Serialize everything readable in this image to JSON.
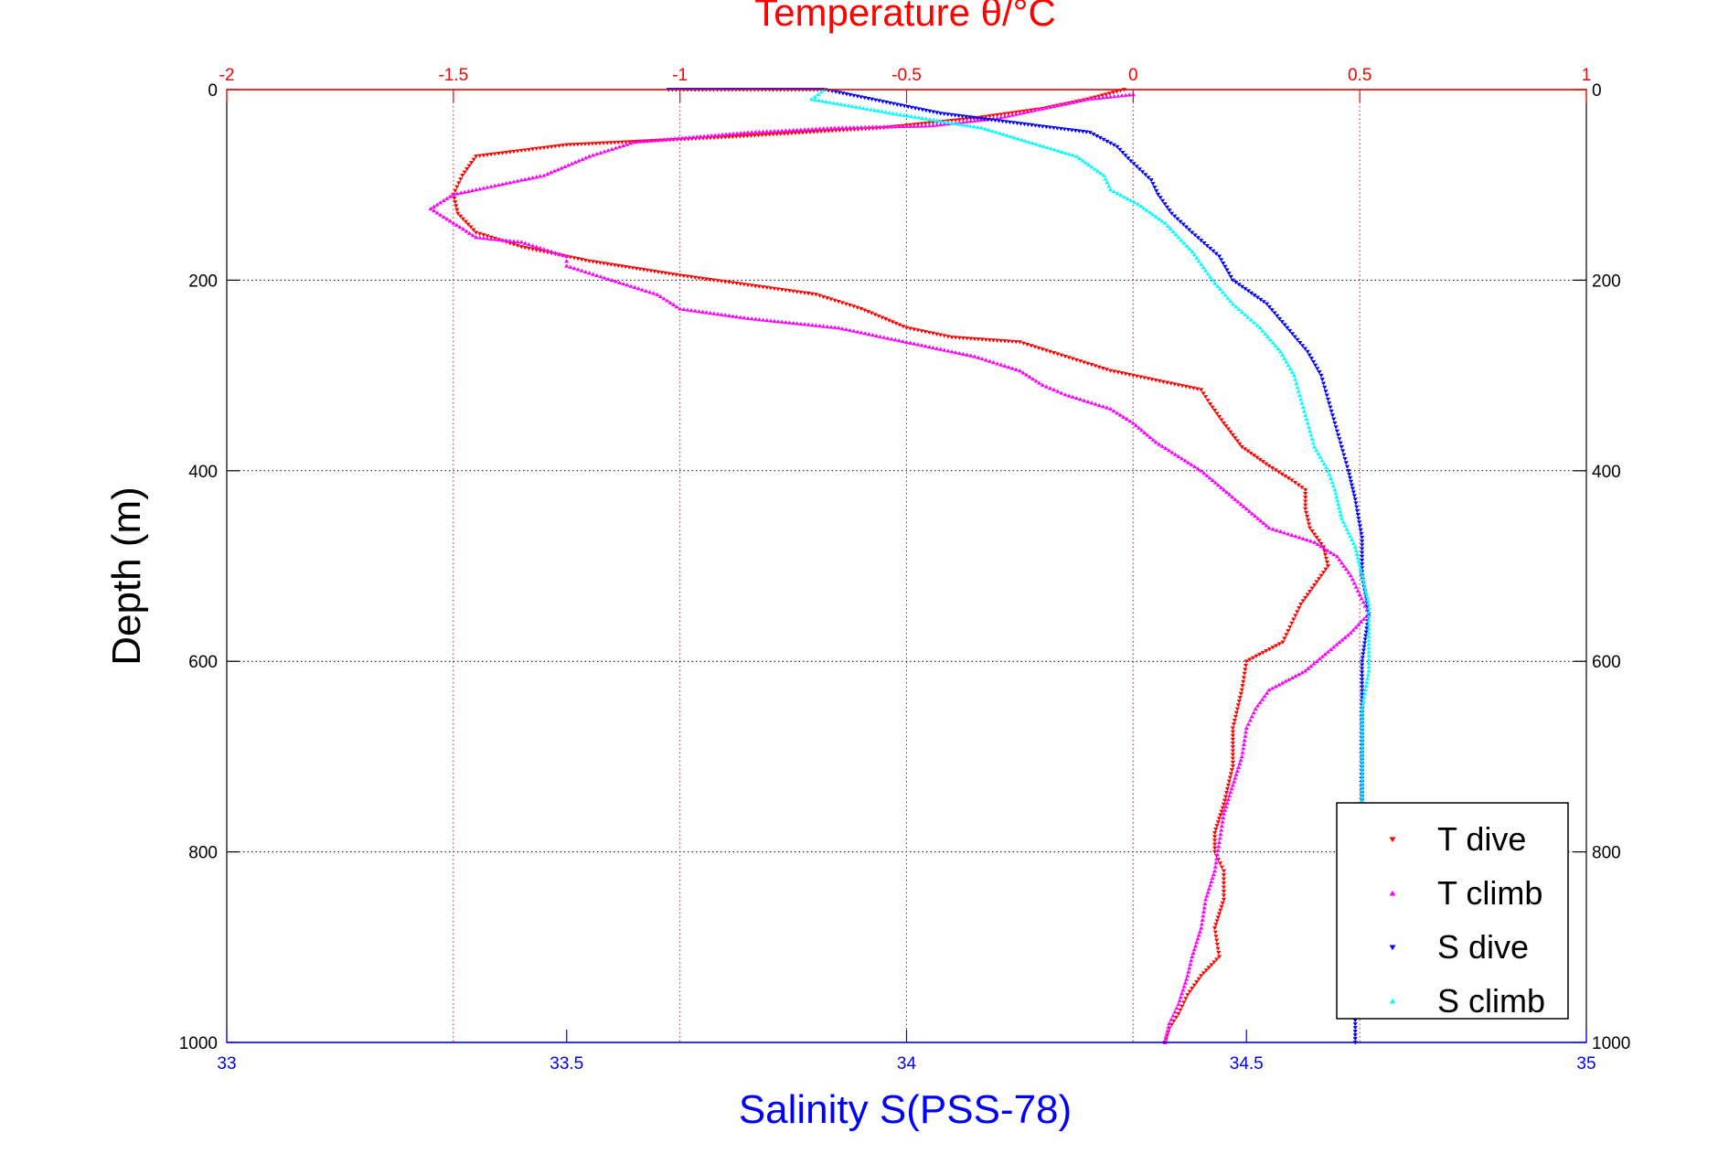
{
  "chart_data": {
    "type": "scatter",
    "title": "Temperature θ/°C",
    "ylabel": "Depth (m)",
    "xlabel": "Salinity S(PSS-78)",
    "y_axis": {
      "range": [
        0,
        1000
      ],
      "reversed": true,
      "ticks": [
        0,
        200,
        400,
        600,
        800,
        1000
      ],
      "tick_labels": [
        "0",
        "200",
        "400",
        "600",
        "800",
        "1000"
      ]
    },
    "x_top_axis": {
      "label": "Temperature θ/°C",
      "range": [
        -2,
        1
      ],
      "ticks": [
        -2,
        -1.5,
        -1,
        -0.5,
        0,
        0.5,
        1
      ],
      "tick_labels": [
        "-2",
        "-1.5",
        "-1",
        "-0.5",
        "0",
        "0.5",
        "1"
      ],
      "color": "#ff0000"
    },
    "x_bottom_axis": {
      "label": "Salinity S(PSS-78)",
      "range": [
        33,
        35
      ],
      "ticks": [
        33,
        33.5,
        34,
        34.5,
        35
      ],
      "tick_labels": [
        "33",
        "33.5",
        "34",
        "34.5",
        "35"
      ],
      "color": "#0000ff"
    },
    "grid": true,
    "legend": {
      "placement": "bottom-right"
    },
    "series": [
      {
        "name": "T dive",
        "axis": "top",
        "color": "#ff0000",
        "marker": "triangle-down",
        "points": [
          [
            -0.02,
            0
          ],
          [
            -0.1,
            10
          ],
          [
            -0.2,
            20
          ],
          [
            -0.35,
            30
          ],
          [
            -0.55,
            40
          ],
          [
            -0.9,
            50
          ],
          [
            -1.25,
            58
          ],
          [
            -1.45,
            70
          ],
          [
            -1.48,
            90
          ],
          [
            -1.5,
            110
          ],
          [
            -1.49,
            130
          ],
          [
            -1.45,
            150
          ],
          [
            -1.35,
            165
          ],
          [
            -1.2,
            180
          ],
          [
            -1.0,
            195
          ],
          [
            -0.85,
            205
          ],
          [
            -0.7,
            215
          ],
          [
            -0.6,
            230
          ],
          [
            -0.5,
            250
          ],
          [
            -0.4,
            260
          ],
          [
            -0.25,
            265
          ],
          [
            -0.15,
            280
          ],
          [
            -0.05,
            295
          ],
          [
            0.05,
            305
          ],
          [
            0.15,
            315
          ],
          [
            0.17,
            330
          ],
          [
            0.2,
            350
          ],
          [
            0.24,
            375
          ],
          [
            0.3,
            395
          ],
          [
            0.35,
            410
          ],
          [
            0.38,
            420
          ],
          [
            0.38,
            440
          ],
          [
            0.39,
            460
          ],
          [
            0.42,
            480
          ],
          [
            0.43,
            500
          ],
          [
            0.4,
            520
          ],
          [
            0.37,
            540
          ],
          [
            0.35,
            560
          ],
          [
            0.33,
            580
          ],
          [
            0.25,
            600
          ],
          [
            0.24,
            630
          ],
          [
            0.23,
            650
          ],
          [
            0.22,
            670
          ],
          [
            0.22,
            690
          ],
          [
            0.22,
            710
          ],
          [
            0.21,
            730
          ],
          [
            0.2,
            750
          ],
          [
            0.18,
            780
          ],
          [
            0.18,
            800
          ],
          [
            0.2,
            820
          ],
          [
            0.2,
            850
          ],
          [
            0.18,
            880
          ],
          [
            0.19,
            910
          ],
          [
            0.15,
            930
          ],
          [
            0.12,
            950
          ],
          [
            0.1,
            970
          ],
          [
            0.08,
            985
          ],
          [
            0.07,
            1000
          ]
        ]
      },
      {
        "name": "T climb",
        "axis": "top",
        "color": "#ff00ff",
        "marker": "triangle-up",
        "points": [
          [
            0.0,
            5
          ],
          [
            -0.1,
            10
          ],
          [
            -0.2,
            20
          ],
          [
            -0.3,
            30
          ],
          [
            -0.45,
            38
          ],
          [
            -0.65,
            40
          ],
          [
            -0.85,
            45
          ],
          [
            -1.1,
            55
          ],
          [
            -1.2,
            70
          ],
          [
            -1.3,
            90
          ],
          [
            -1.4,
            100
          ],
          [
            -1.5,
            110
          ],
          [
            -1.55,
            125
          ],
          [
            -1.5,
            140
          ],
          [
            -1.45,
            155
          ],
          [
            -1.35,
            160
          ],
          [
            -1.25,
            175
          ],
          [
            -1.25,
            185
          ],
          [
            -1.15,
            200
          ],
          [
            -1.05,
            215
          ],
          [
            -1.0,
            230
          ],
          [
            -0.85,
            240
          ],
          [
            -0.65,
            250
          ],
          [
            -0.55,
            260
          ],
          [
            -0.45,
            270
          ],
          [
            -0.35,
            280
          ],
          [
            -0.25,
            295
          ],
          [
            -0.2,
            310
          ],
          [
            -0.15,
            320
          ],
          [
            -0.05,
            335
          ],
          [
            0.0,
            350
          ],
          [
            0.05,
            370
          ],
          [
            0.1,
            385
          ],
          [
            0.15,
            400
          ],
          [
            0.2,
            420
          ],
          [
            0.25,
            440
          ],
          [
            0.3,
            460
          ],
          [
            0.4,
            475
          ],
          [
            0.45,
            490
          ],
          [
            0.48,
            510
          ],
          [
            0.5,
            530
          ],
          [
            0.52,
            550
          ],
          [
            0.48,
            570
          ],
          [
            0.43,
            590
          ],
          [
            0.38,
            610
          ],
          [
            0.3,
            630
          ],
          [
            0.27,
            650
          ],
          [
            0.25,
            670
          ],
          [
            0.24,
            700
          ],
          [
            0.22,
            730
          ],
          [
            0.2,
            760
          ],
          [
            0.19,
            790
          ],
          [
            0.18,
            820
          ],
          [
            0.16,
            850
          ],
          [
            0.15,
            880
          ],
          [
            0.13,
            910
          ],
          [
            0.12,
            930
          ],
          [
            0.1,
            960
          ],
          [
            0.08,
            980
          ],
          [
            0.07,
            1000
          ]
        ]
      },
      {
        "name": "S dive",
        "axis": "bottom",
        "color": "#0000ff",
        "marker": "triangle-down",
        "points": [
          [
            33.65,
            0
          ],
          [
            33.7,
            0
          ],
          [
            33.76,
            0
          ],
          [
            33.88,
            0
          ],
          [
            34.05,
            25
          ],
          [
            34.27,
            45
          ],
          [
            34.31,
            60
          ],
          [
            34.33,
            75
          ],
          [
            34.36,
            95
          ],
          [
            34.37,
            110
          ],
          [
            34.39,
            130
          ],
          [
            34.42,
            150
          ],
          [
            34.46,
            175
          ],
          [
            34.48,
            200
          ],
          [
            34.53,
            225
          ],
          [
            34.56,
            250
          ],
          [
            34.59,
            275
          ],
          [
            34.61,
            300
          ],
          [
            34.62,
            325
          ],
          [
            34.63,
            350
          ],
          [
            34.64,
            375
          ],
          [
            34.65,
            400
          ],
          [
            34.66,
            430
          ],
          [
            34.67,
            470
          ],
          [
            34.67,
            510
          ],
          [
            34.68,
            550
          ],
          [
            34.67,
            600
          ],
          [
            34.67,
            650
          ],
          [
            34.67,
            700
          ],
          [
            34.67,
            750
          ],
          [
            34.66,
            800
          ],
          [
            34.66,
            850
          ],
          [
            34.66,
            900
          ],
          [
            34.66,
            950
          ],
          [
            34.66,
            1000
          ]
        ]
      },
      {
        "name": "S climb",
        "axis": "bottom",
        "color": "#00ffff",
        "marker": "triangle-up",
        "points": [
          [
            33.88,
            0
          ],
          [
            33.86,
            10
          ],
          [
            33.98,
            25
          ],
          [
            34.11,
            40
          ],
          [
            34.18,
            55
          ],
          [
            34.25,
            70
          ],
          [
            34.29,
            90
          ],
          [
            34.3,
            105
          ],
          [
            34.34,
            120
          ],
          [
            34.38,
            140
          ],
          [
            34.42,
            170
          ],
          [
            34.45,
            200
          ],
          [
            34.48,
            225
          ],
          [
            34.52,
            250
          ],
          [
            34.55,
            275
          ],
          [
            34.57,
            300
          ],
          [
            34.58,
            325
          ],
          [
            34.59,
            350
          ],
          [
            34.6,
            375
          ],
          [
            34.62,
            400
          ],
          [
            34.63,
            420
          ],
          [
            34.64,
            450
          ],
          [
            34.66,
            480
          ],
          [
            34.67,
            510
          ],
          [
            34.68,
            540
          ],
          [
            34.68,
            570
          ],
          [
            34.68,
            610
          ],
          [
            34.67,
            650
          ],
          [
            34.67,
            700
          ],
          [
            34.67,
            750
          ]
        ]
      }
    ]
  }
}
